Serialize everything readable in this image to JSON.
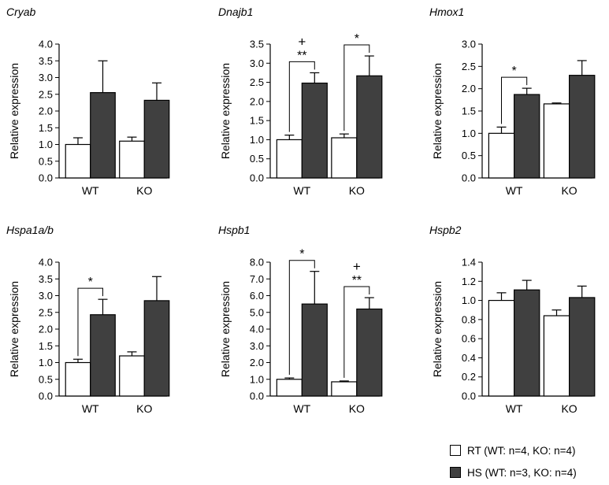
{
  "chart_data": [
    {
      "type": "bar",
      "title": "Cryab",
      "ylabel": "Relative expression",
      "categories": [
        "WT",
        "KO"
      ],
      "ylim": [
        0,
        4.0
      ],
      "yticks": [
        "0.0",
        "0.5",
        "1.0",
        "1.5",
        "2.0",
        "2.5",
        "3.0",
        "3.5",
        "4.0"
      ],
      "series": [
        {
          "name": "RT (WT: n=4, KO: n=4)",
          "values": [
            1.0,
            1.1
          ],
          "errors": [
            0.2,
            0.12
          ]
        },
        {
          "name": "HS (WT: n=3, KO: n=4)",
          "values": [
            2.55,
            2.32
          ],
          "errors": [
            0.95,
            0.52
          ]
        }
      ],
      "annotations": []
    },
    {
      "type": "bar",
      "title": "Dnajb1",
      "ylabel": "Relative expression",
      "categories": [
        "WT",
        "KO"
      ],
      "ylim": [
        0,
        3.5
      ],
      "yticks": [
        "0.0",
        "0.5",
        "1.0",
        "1.5",
        "2.0",
        "2.5",
        "3.0",
        "3.5"
      ],
      "series": [
        {
          "name": "RT (WT: n=4, KO: n=4)",
          "values": [
            1.0,
            1.05
          ],
          "errors": [
            0.12,
            0.1
          ]
        },
        {
          "name": "HS (WT: n=3, KO: n=4)",
          "values": [
            2.48,
            2.67
          ],
          "errors": [
            0.27,
            0.52
          ]
        }
      ],
      "annotations": [
        {
          "category": 0,
          "label": "**",
          "extra": "+"
        },
        {
          "category": 1,
          "label": "*",
          "extra": ""
        }
      ]
    },
    {
      "type": "bar",
      "title": "Hmox1",
      "ylabel": "Relative expression",
      "categories": [
        "WT",
        "KO"
      ],
      "ylim": [
        0,
        3.0
      ],
      "yticks": [
        "0.0",
        "0.5",
        "1.0",
        "1.5",
        "2.0",
        "2.5",
        "3.0"
      ],
      "series": [
        {
          "name": "RT (WT: n=4, KO: n=4)",
          "values": [
            1.0,
            1.66
          ],
          "errors": [
            0.14,
            0.02
          ]
        },
        {
          "name": "HS (WT: n=3, KO: n=4)",
          "values": [
            1.87,
            2.3
          ],
          "errors": [
            0.14,
            0.33
          ]
        }
      ],
      "annotations": [
        {
          "category": 0,
          "label": "*",
          "extra": ""
        }
      ]
    },
    {
      "type": "bar",
      "title": "Hspa1a/b",
      "ylabel": "Relative expression",
      "categories": [
        "WT",
        "KO"
      ],
      "ylim": [
        0,
        4.0
      ],
      "yticks": [
        "0.0",
        "0.5",
        "1.0",
        "1.5",
        "2.0",
        "2.5",
        "3.0",
        "3.5",
        "4.0"
      ],
      "series": [
        {
          "name": "RT (WT: n=4, KO: n=4)",
          "values": [
            1.0,
            1.2
          ],
          "errors": [
            0.1,
            0.12
          ]
        },
        {
          "name": "HS (WT: n=3, KO: n=4)",
          "values": [
            2.43,
            2.85
          ],
          "errors": [
            0.46,
            0.72
          ]
        }
      ],
      "annotations": [
        {
          "category": 0,
          "label": "*",
          "extra": ""
        }
      ]
    },
    {
      "type": "bar",
      "title": "Hspb1",
      "ylabel": "Relative expression",
      "categories": [
        "WT",
        "KO"
      ],
      "ylim": [
        0,
        8.0
      ],
      "yticks": [
        "0.0",
        "1.0",
        "2.0",
        "3.0",
        "4.0",
        "5.0",
        "6.0",
        "7.0",
        "8.0"
      ],
      "series": [
        {
          "name": "RT (WT: n=4, KO: n=4)",
          "values": [
            1.0,
            0.85
          ],
          "errors": [
            0.08,
            0.05
          ]
        },
        {
          "name": "HS (WT: n=3, KO: n=4)",
          "values": [
            5.5,
            5.2
          ],
          "errors": [
            1.95,
            0.68
          ]
        }
      ],
      "annotations": [
        {
          "category": 0,
          "label": "*",
          "extra": ""
        },
        {
          "category": 1,
          "label": "**",
          "extra": "+"
        }
      ]
    },
    {
      "type": "bar",
      "title": "Hspb2",
      "ylabel": "Relative expression",
      "categories": [
        "WT",
        "KO"
      ],
      "ylim": [
        0,
        1.4
      ],
      "yticks": [
        "0.0",
        "0.2",
        "0.4",
        "0.6",
        "0.8",
        "1.0",
        "1.2",
        "1.4"
      ],
      "series": [
        {
          "name": "RT (WT: n=4, KO: n=4)",
          "values": [
            1.0,
            0.84
          ],
          "errors": [
            0.08,
            0.06
          ]
        },
        {
          "name": "HS (WT: n=3, KO: n=4)",
          "values": [
            1.11,
            1.03
          ],
          "errors": [
            0.1,
            0.12
          ]
        }
      ],
      "annotations": []
    }
  ],
  "legend": {
    "items": [
      {
        "label": "RT (WT: n=4, KO: n=4)",
        "color": "#ffffff"
      },
      {
        "label": "HS (WT: n=3, KO: n=4)",
        "color": "#404040"
      }
    ]
  },
  "colors": {
    "rt": "#ffffff",
    "hs": "#404040",
    "stroke": "#000000"
  }
}
